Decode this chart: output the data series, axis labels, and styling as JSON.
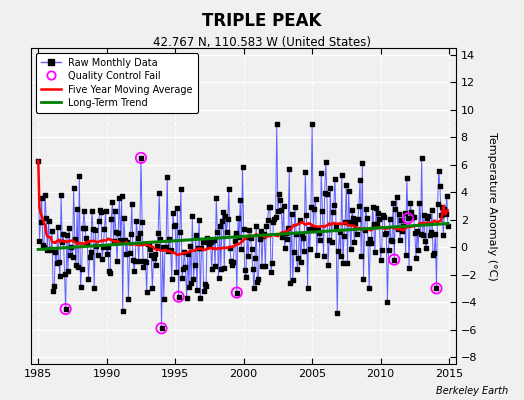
{
  "title": "TRIPLE PEAK",
  "subtitle": "42.767 N, 110.583 W (United States)",
  "ylabel": "Temperature Anomaly (°C)",
  "credit": "Berkeley Earth",
  "xlim": [
    1984.5,
    2015.5
  ],
  "ylim": [
    -8.5,
    14.5
  ],
  "yticks": [
    -8,
    -6,
    -4,
    -2,
    0,
    2,
    4,
    6,
    8,
    10,
    12,
    14
  ],
  "xticks": [
    1985,
    1990,
    1995,
    2000,
    2005,
    2010,
    2015
  ],
  "bg_color": "#f0f0f0",
  "plot_bg_color": "#f0f0f0",
  "raw_line_color": "#6060ff",
  "raw_marker_color": "black",
  "raw_marker_size": 6,
  "ma_color": "red",
  "trend_color": "green",
  "qc_color": "magenta",
  "grid_color": "white",
  "seed": 42,
  "years_start": 1985,
  "years_end": 2015
}
